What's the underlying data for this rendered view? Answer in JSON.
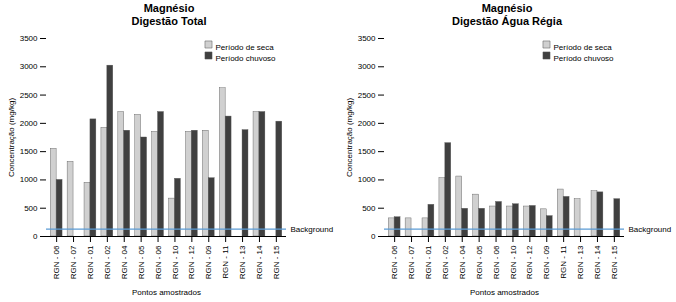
{
  "chart_data": [
    {
      "type": "bar",
      "title": "Magnésio\nDigestão Total",
      "xlabel": "Pontos amostrados",
      "ylabel": "Concentração (mg/kg)",
      "categories": [
        "RGN - 06",
        "RGN - 07",
        "RGN - 01",
        "RGN - 02",
        "RGN - 04",
        "RGN - 05",
        "RGN - 06",
        "RGN - 10",
        "RGN - 12",
        "RGN - 09",
        "RGN - 11",
        "RGN - 13",
        "RGN - 14",
        "RGN - 15"
      ],
      "series": [
        {
          "name": "Período de seca",
          "color": "#d0d0d0",
          "values": [
            1550,
            1320,
            950,
            1920,
            2200,
            2150,
            1850,
            670,
            1850,
            1870,
            2620,
            0,
            2200,
            0
          ]
        },
        {
          "name": "Período chuvoso",
          "color": "#404040",
          "values": [
            1000,
            0,
            2070,
            3020,
            1870,
            1750,
            2200,
            1020,
            1870,
            1030,
            2120,
            1880,
            2200,
            2030
          ]
        }
      ],
      "reference_line": {
        "y": 130,
        "label": "Background",
        "color": "#5b9bd5"
      },
      "ylim": [
        0,
        3500
      ],
      "yticks": [
        0,
        500,
        1000,
        1500,
        2000,
        2500,
        3000,
        3500
      ],
      "legend": "upper right"
    },
    {
      "type": "bar",
      "title": "Magnésio\nDigestão Água Régia",
      "xlabel": "Pontos amostrados",
      "ylabel": "Concentração (mg/kg)",
      "categories": [
        "RGN - 06",
        "RGN - 07",
        "RGN - 01",
        "RGN - 02",
        "RGN - 04",
        "RGN - 05",
        "RGN - 06",
        "RGN - 10",
        "RGN - 12",
        "RGN - 09",
        "RGN - 11",
        "RGN - 13",
        "RGN - 14",
        "RGN - 15"
      ],
      "series": [
        {
          "name": "Período de seca",
          "color": "#d0d0d0",
          "values": [
            320,
            320,
            320,
            1030,
            1060,
            740,
            530,
            530,
            530,
            480,
            830,
            660,
            800,
            0
          ]
        },
        {
          "name": "Período chuvoso",
          "color": "#404040",
          "values": [
            340,
            0,
            560,
            1650,
            490,
            490,
            610,
            570,
            540,
            360,
            700,
            0,
            780,
            660
          ]
        }
      ],
      "reference_line": {
        "y": 130,
        "label": "Background",
        "color": "#5b9bd5"
      },
      "ylim": [
        0,
        3500
      ],
      "yticks": [
        0,
        500,
        1000,
        1500,
        2000,
        2500,
        3000,
        3500
      ],
      "legend": "upper right"
    }
  ]
}
